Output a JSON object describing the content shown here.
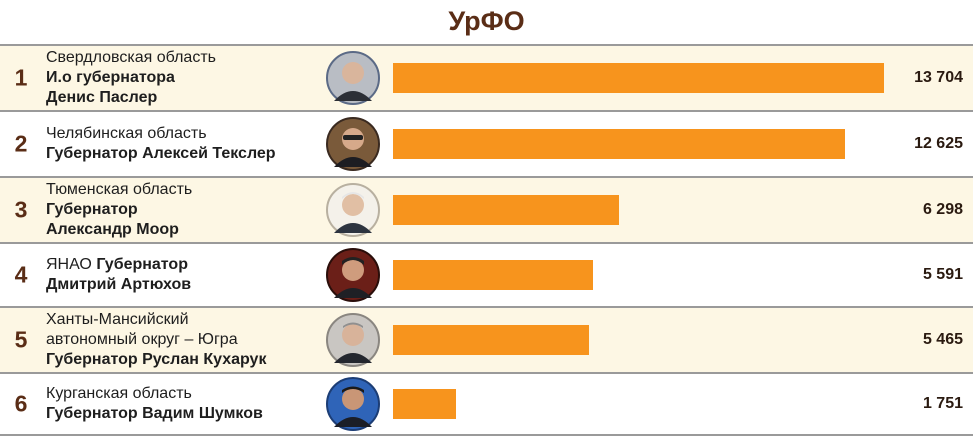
{
  "title": "УрФО",
  "colors": {
    "bar": "#f7941d",
    "row_alt": "#fdf7e4",
    "row": "#ffffff",
    "title": "#5a2d16"
  },
  "rows": [
    {
      "rank": "1",
      "line1_plain": "Свердловская область",
      "line1_bold": "",
      "line2": "И.о губернатора",
      "line3": "Денис Паслер",
      "value_label": "13 704"
    },
    {
      "rank": "2",
      "line1_plain": "Челябинская область",
      "line1_bold": "",
      "line2": "Губернатор Алексей Текслер",
      "line3": "",
      "value_label": "12 625"
    },
    {
      "rank": "3",
      "line1_plain": "Тюменская область",
      "line1_bold": "",
      "line2": "Губернатор",
      "line3": "Александр Моор",
      "value_label": "6 298"
    },
    {
      "rank": "4",
      "line1_plain": "ЯНАО ",
      "line1_bold": "Губернатор",
      "line2": "Дмитрий Артюхов",
      "line3": "",
      "value_label": "5 591"
    },
    {
      "rank": "5",
      "line1_plain": "Ханты-Мансийский",
      "line1_bold": "",
      "line2": "автономный округ – Югра",
      "line3": "Губернатор Руслан Кухарук",
      "value_label": "5 465"
    },
    {
      "rank": "6",
      "line1_plain": "Курганская область",
      "line1_bold": "",
      "line2": "Губернатор Вадим Шумков",
      "line3": "",
      "value_label": "1 751"
    }
  ],
  "chart_data": {
    "type": "bar",
    "orientation": "horizontal",
    "title": "УрФО",
    "categories": [
      "Свердловская область",
      "Челябинская область",
      "Тюменская область",
      "ЯНАО",
      "Ханты-Мансийский автономный округ – Югра",
      "Курганская область"
    ],
    "values": [
      13704,
      12625,
      6298,
      5591,
      5465,
      1751
    ],
    "xlim": [
      0,
      13704
    ],
    "grid": false,
    "legend": "none"
  }
}
